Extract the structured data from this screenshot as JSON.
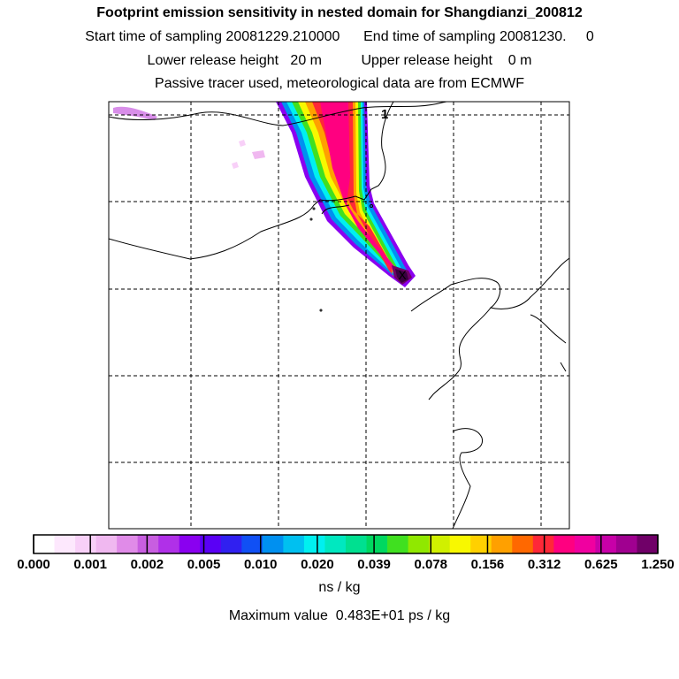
{
  "titles": {
    "line1": "Footprint emission sensitivity in nested domain for Shangdianzi_200812",
    "line2": "Start time of sampling 20081229.210000      End time of sampling 20081230.     0",
    "line3": "Lower release height   20 m          Upper release height    0 m",
    "line4": "Passive tracer used, meteorological data are from ECMWF"
  },
  "map": {
    "marker_label": "1",
    "release_point_symbol": "X"
  },
  "colorbar": {
    "colors": [
      "#ffffff",
      "#fde8fd",
      "#f8d0f8",
      "#f0b8f0",
      "#e08be8",
      "#c85ee0",
      "#b030e8",
      "#8a00f0",
      "#5a00f5",
      "#3020f0",
      "#1050f5",
      "#0090f0",
      "#00c0f0",
      "#00f0f0",
      "#00e8c0",
      "#00e090",
      "#00d860",
      "#40e020",
      "#90e800",
      "#d0f000",
      "#f8f800",
      "#ffd000",
      "#ffa000",
      "#ff6800",
      "#ff2838",
      "#ff0080",
      "#f000a0",
      "#c800a8",
      "#a00090",
      "#700068"
    ],
    "tick_labels": [
      "0.000",
      "0.001",
      "0.002",
      "0.005",
      "0.010",
      "0.020",
      "0.039",
      "0.078",
      "0.156",
      "0.312",
      "0.625",
      "1.250"
    ],
    "units": "ns / kg",
    "max_value_text": "Maximum value  0.483E+01 ps / kg"
  }
}
